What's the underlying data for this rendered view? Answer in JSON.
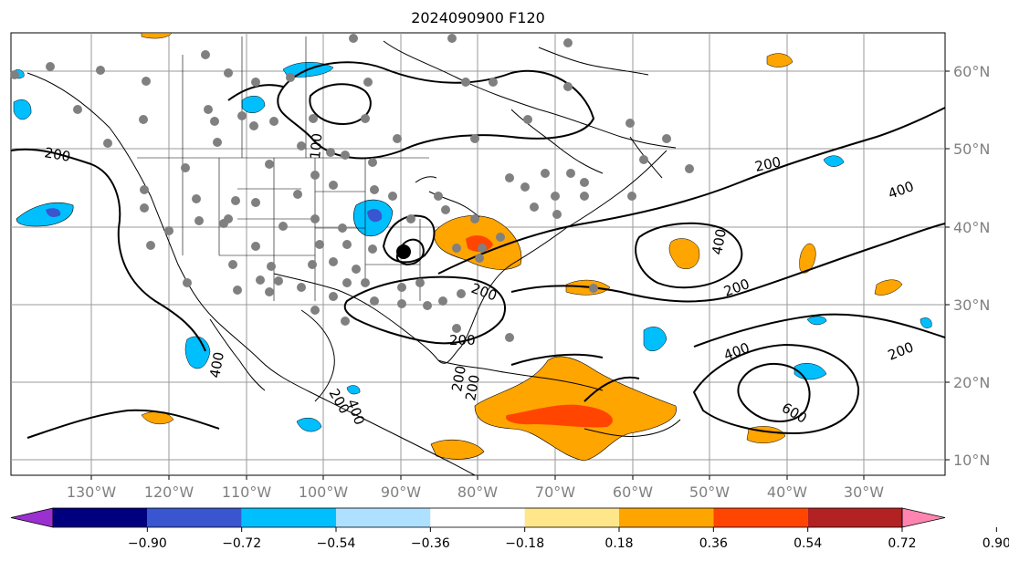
{
  "title": "2024090900 F120",
  "lon_labels": [
    "130°W",
    "120°W",
    "110°W",
    "100°W",
    "90°W",
    "80°W",
    "70°W",
    "60°W",
    "50°W",
    "40°W",
    "30°W"
  ],
  "lat_labels": [
    "60°N",
    "50°N",
    "40°N",
    "30°N",
    "20°N",
    "10°N"
  ],
  "contour_labels": [
    "200",
    "200",
    "400",
    "200",
    "400",
    "200",
    "400",
    "600",
    "200",
    "200",
    "200",
    "400",
    "200",
    "100",
    "200",
    "400"
  ],
  "colorbar": {
    "tick_labels": [
      "−0.90",
      "−0.72",
      "−0.54",
      "−0.36",
      "−0.18",
      "0.18",
      "0.36",
      "0.54",
      "0.72",
      "0.90"
    ],
    "colors": [
      "#9b30d0",
      "#00007f",
      "#3a55d0",
      "#00bfff",
      "#aee0ff",
      "#ffffff",
      "#ffe68a",
      "#ffa500",
      "#ff4500",
      "#b22222",
      "#ff85b0"
    ]
  },
  "colors": {
    "land_border": "#000000",
    "contour": "#000000",
    "station": "#808080",
    "marker": "#000000",
    "grid": "#808080"
  }
}
